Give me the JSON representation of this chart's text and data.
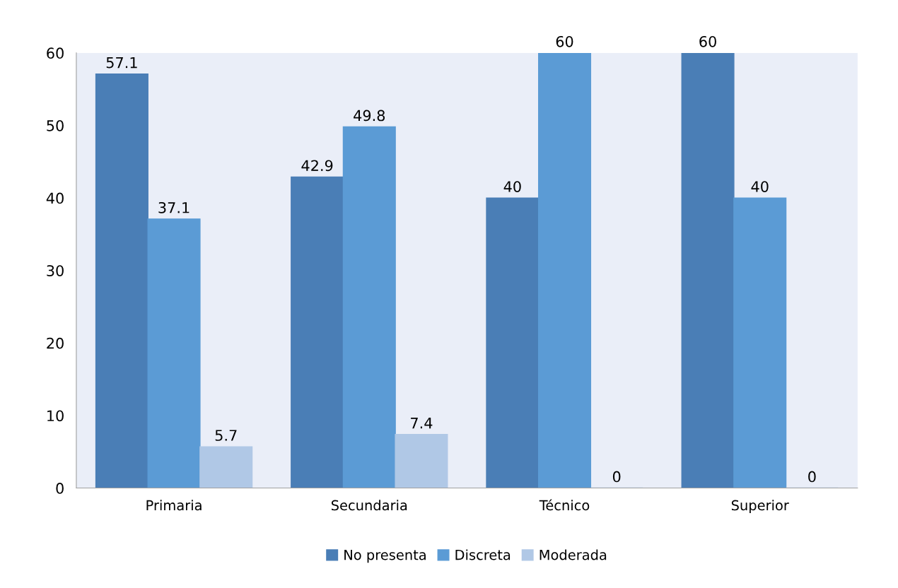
{
  "chart_data": {
    "type": "bar",
    "categories": [
      "Primaria",
      "Secundaria",
      "Técnico",
      "Superior"
    ],
    "series": [
      {
        "name": "No presenta",
        "color": "#4a7eb6",
        "values": [
          57.1,
          42.9,
          40,
          60
        ]
      },
      {
        "name": "Discreta",
        "color": "#5b9bd5",
        "values": [
          37.1,
          49.8,
          60,
          40
        ]
      },
      {
        "name": "Moderada",
        "color": "#b0c8e6",
        "values": [
          5.7,
          7.4,
          0,
          0
        ]
      }
    ],
    "ylim": [
      0,
      60
    ],
    "yticks": [
      0,
      10,
      20,
      30,
      40,
      50,
      60
    ],
    "data_labels": true,
    "grid": false,
    "legend": "bottom"
  }
}
